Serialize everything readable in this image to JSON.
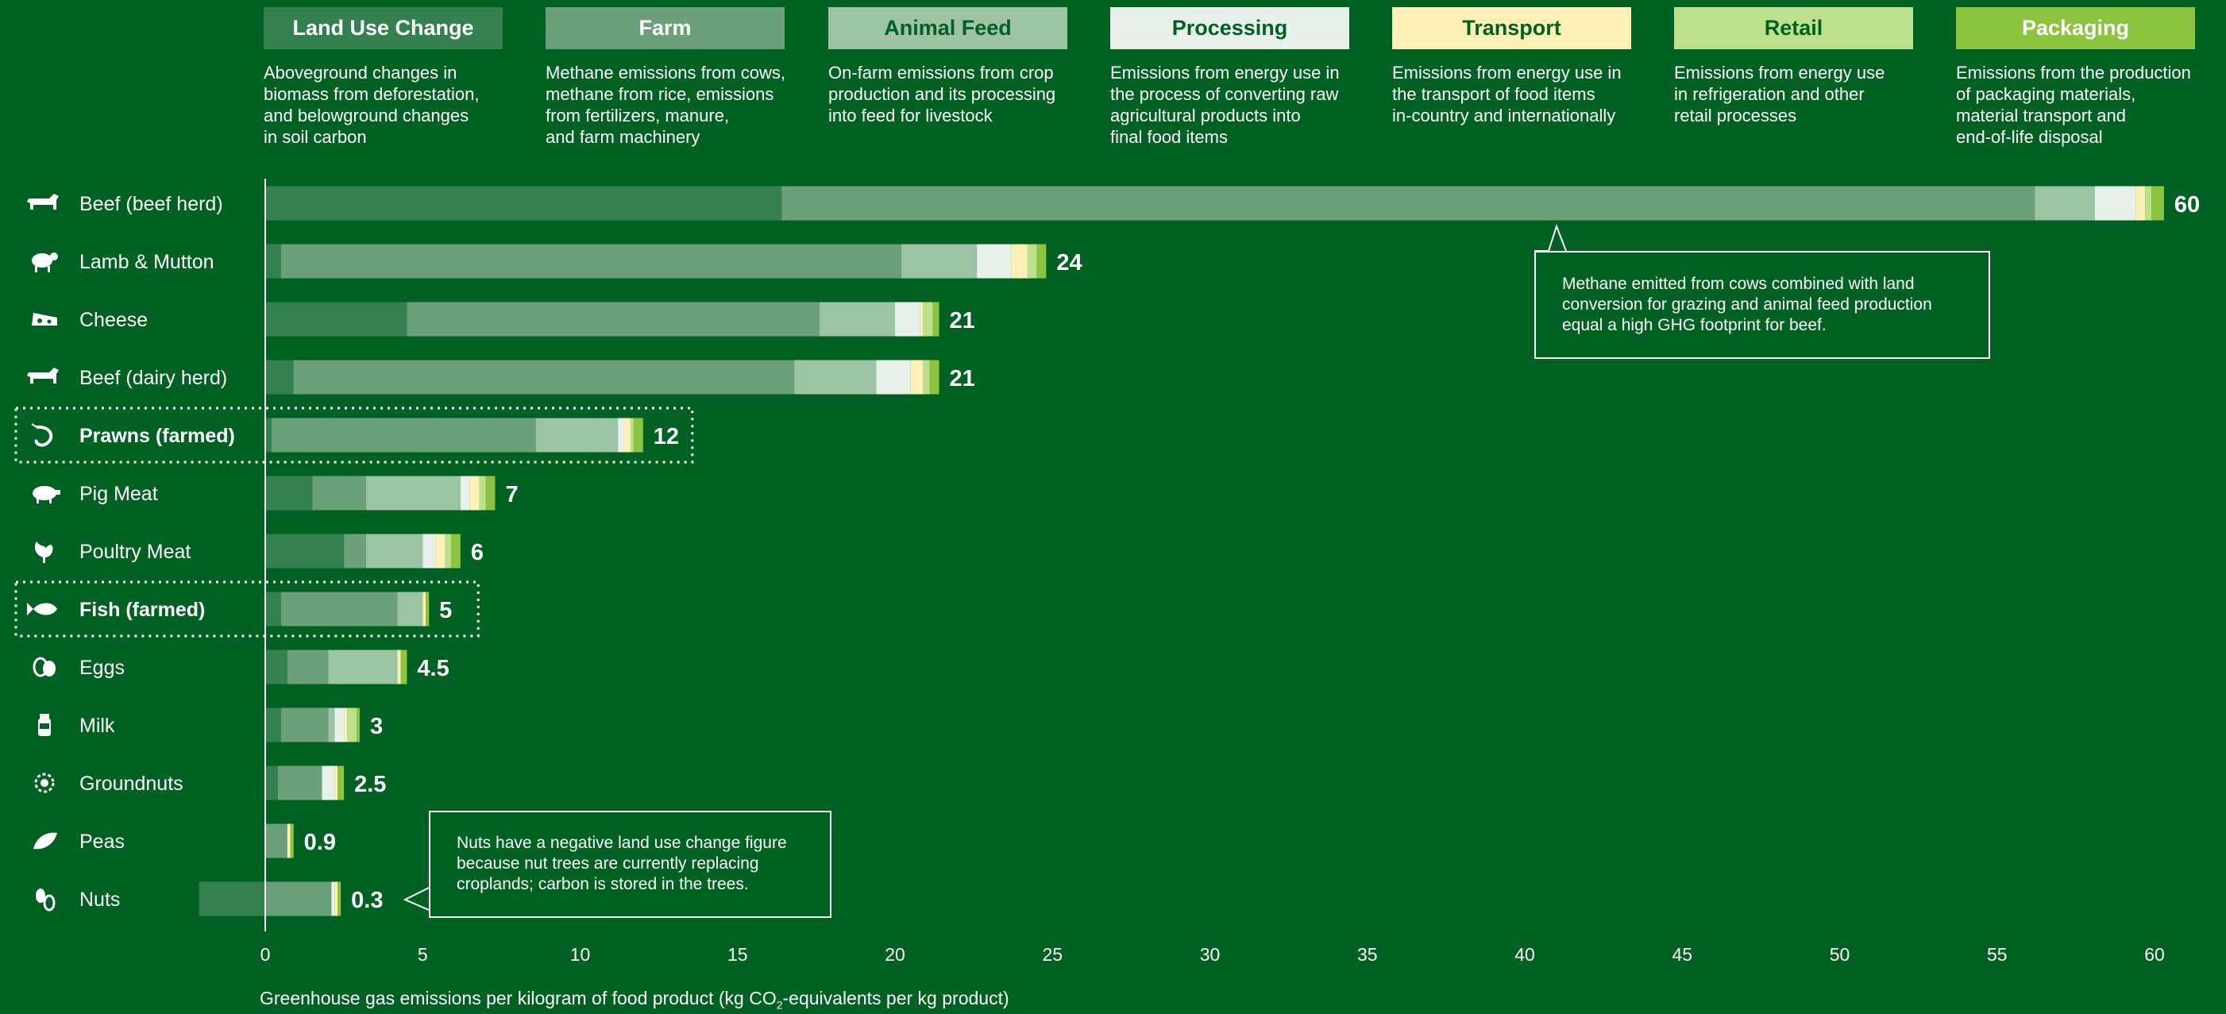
{
  "legend": [
    {
      "name": "Land Use Change",
      "color": "#35804F",
      "text_color": "#ffffff",
      "desc": [
        "Aboveground changes in",
        "biomass from deforestation,",
        "and belowground changes",
        "in soil carbon"
      ]
    },
    {
      "name": "Farm",
      "color": "#6BA07A",
      "text_color": "#ffffff",
      "desc": [
        "Methane emissions from cows,",
        "methane from rice, emissions",
        "from fertilizers, manure,",
        "and farm machinery"
      ]
    },
    {
      "name": "Animal Feed",
      "color": "#9DC3A5",
      "text_color": "#006123",
      "desc": [
        "On-farm emissions from crop",
        "production and its processing",
        "into feed for livestock"
      ]
    },
    {
      "name": "Processing",
      "color": "#E8F0EA",
      "text_color": "#006123",
      "desc": [
        "Emissions from energy use in",
        "the process of converting raw",
        "agricultural products into",
        "final food items"
      ]
    },
    {
      "name": "Transport",
      "color": "#FFF0B5",
      "text_color": "#006123",
      "desc": [
        "Emissions from energy use in",
        "the transport of food items",
        "in-country and internationally"
      ]
    },
    {
      "name": "Retail",
      "color": "#BDE08C",
      "text_color": "#006123",
      "desc": [
        "Emissions from energy use",
        "in refrigeration and other",
        "retail processes"
      ]
    },
    {
      "name": "Packaging",
      "color": "#8CC43F",
      "text_color": "#ffffff",
      "desc": [
        "Emissions from the production",
        "of packaging materials,",
        "material transport and",
        "end-of-life disposal"
      ]
    }
  ],
  "chart_data": {
    "type": "bar",
    "orientation": "horizontal",
    "stacked": true,
    "xlabel_parts": [
      "Greenhouse gas emissions per kilogram of food product (kg CO",
      "2",
      "-equivalents per kg product)"
    ],
    "xlim": [
      -2,
      60
    ],
    "xticks": [
      0,
      5,
      10,
      15,
      20,
      25,
      30,
      35,
      40,
      45,
      50,
      55,
      60
    ],
    "series_names": [
      "Land Use Change",
      "Farm",
      "Animal Feed",
      "Processing",
      "Transport",
      "Retail",
      "Packaging"
    ],
    "rows": [
      {
        "label": "Beef (beef herd)",
        "icon": "cow-icon",
        "total_label": "60",
        "highlight": false,
        "values": [
          16.4,
          39.8,
          1.9,
          1.3,
          0.3,
          0.2,
          0.4
        ]
      },
      {
        "label": "Lamb & Mutton",
        "icon": "sheep-icon",
        "total_label": "24",
        "highlight": false,
        "values": [
          0.5,
          19.7,
          2.4,
          1.1,
          0.5,
          0.3,
          0.3
        ]
      },
      {
        "label": "Cheese",
        "icon": "cheese-icon",
        "total_label": "21",
        "highlight": false,
        "values": [
          4.5,
          13.1,
          2.4,
          0.8,
          0.1,
          0.3,
          0.2
        ]
      },
      {
        "label": "Beef (dairy herd)",
        "icon": "cow-icon",
        "total_label": "21",
        "highlight": false,
        "values": [
          0.9,
          15.9,
          2.6,
          1.1,
          0.4,
          0.2,
          0.3
        ]
      },
      {
        "label": "Prawns (farmed)",
        "icon": "prawn-icon",
        "total_label": "12",
        "highlight": true,
        "values": [
          0.2,
          8.4,
          2.6,
          0.2,
          0.2,
          0.1,
          0.3
        ]
      },
      {
        "label": "Pig Meat",
        "icon": "pig-icon",
        "total_label": "7",
        "highlight": false,
        "values": [
          1.5,
          1.7,
          3.0,
          0.3,
          0.3,
          0.2,
          0.3
        ]
      },
      {
        "label": "Poultry Meat",
        "icon": "chicken-icon",
        "total_label": "6",
        "highlight": false,
        "values": [
          2.5,
          0.7,
          1.8,
          0.4,
          0.3,
          0.2,
          0.3
        ]
      },
      {
        "label": "Fish (farmed)",
        "icon": "fish-icon",
        "total_label": "5",
        "highlight": true,
        "values": [
          0.5,
          3.7,
          0.8,
          0.0,
          0.1,
          0.0,
          0.1
        ]
      },
      {
        "label": "Eggs",
        "icon": "eggs-icon",
        "total_label": "4.5",
        "highlight": false,
        "values": [
          0.7,
          1.3,
          2.2,
          0.0,
          0.1,
          0.0,
          0.2
        ]
      },
      {
        "label": "Milk",
        "icon": "milk-icon",
        "total_label": "3",
        "highlight": false,
        "values": [
          0.5,
          1.5,
          0.2,
          0.3,
          0.1,
          0.3,
          0.1
        ]
      },
      {
        "label": "Groundnuts",
        "icon": "groundnut-icon",
        "total_label": "2.5",
        "highlight": false,
        "values": [
          0.4,
          1.4,
          0.0,
          0.4,
          0.1,
          0.0,
          0.2
        ]
      },
      {
        "label": "Peas",
        "icon": "pea-icon",
        "total_label": "0.9",
        "highlight": false,
        "values": [
          0.0,
          0.7,
          0.0,
          0.0,
          0.1,
          0.0,
          0.1
        ]
      },
      {
        "label": "Nuts",
        "icon": "nut-icon",
        "total_label": "0.3",
        "highlight": false,
        "values": [
          -2.1,
          2.1,
          0.0,
          0.1,
          0.1,
          0.0,
          0.1
        ]
      }
    ],
    "annotations": [
      {
        "target": "Beef (beef herd)",
        "at_x": 41,
        "lines": [
          "Methane emitted from cows combined with land",
          "conversion for grazing and animal feed production",
          "equal a high GHG footprint for beef."
        ]
      },
      {
        "target": "Nuts",
        "at_x": 4.5,
        "lines": [
          "Nuts have a negative land use change figure",
          "because nut trees are currently replacing",
          "croplands; carbon is stored in the trees."
        ]
      }
    ]
  }
}
